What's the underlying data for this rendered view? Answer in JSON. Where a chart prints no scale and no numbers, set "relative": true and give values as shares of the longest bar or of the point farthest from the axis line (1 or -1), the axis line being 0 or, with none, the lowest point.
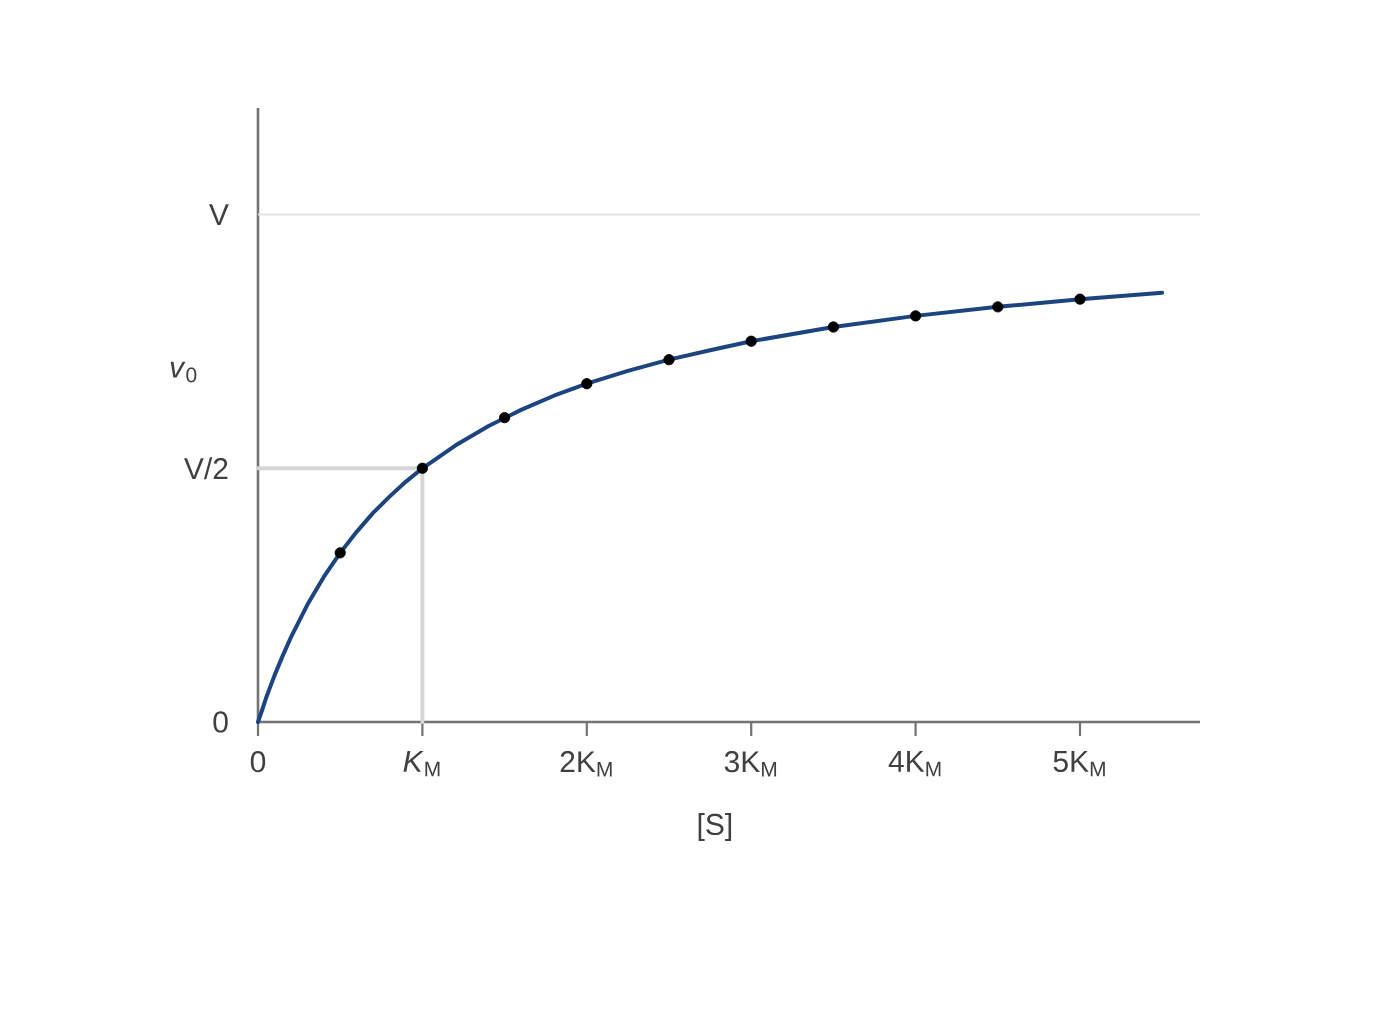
{
  "chart_data": {
    "type": "line",
    "relative": true,
    "xlabel": "[S]",
    "ylabel": "*v*$_{0}$",
    "xlim": [
      0,
      5.73
    ],
    "xticks": [
      0,
      {
        "value": 1,
        "label": "*K*$_{M}$"
      },
      {
        "value": 2,
        "label": "2K$_{M}$"
      },
      {
        "value": 3,
        "label": "3K$_{M}$"
      },
      {
        "value": 4,
        "label": "4K$_{M}$"
      },
      {
        "value": 5,
        "label": "5K$_{M}$"
      }
    ],
    "ref_lines": [
      {
        "axis": "y",
        "value": 1.182,
        "label": "V",
        "color": "#e4e4e4"
      }
    ],
    "annotations": [
      {
        "text": "V/2",
        "x": 0,
        "y": 0.591
      },
      {
        "text": "0",
        "x": 0,
        "y": 0
      }
    ],
    "series": [
      {
        "color": "#d6d6d6",
        "x": [
          0,
          1,
          1
        ],
        "values": [
          0.591,
          0.591,
          0
        ]
      },
      {
        "color": "#1b4480",
        "x": [
          0,
          0.025,
          0.05,
          0.1,
          0.15,
          0.2,
          0.3,
          0.4,
          0.5,
          0.6,
          0.7,
          0.8,
          0.9,
          1.0,
          1.2,
          1.4,
          1.6,
          1.8,
          2.0,
          2.25,
          2.5,
          2.75,
          3,
          3.5,
          4,
          4.5,
          5,
          5.5
        ],
        "values": [
          0,
          0.028,
          0.057,
          0.108,
          0.154,
          0.197,
          0.273,
          0.338,
          0.394,
          0.443,
          0.487,
          0.525,
          0.56,
          0.591,
          0.644,
          0.689,
          0.727,
          0.76,
          0.788,
          0.818,
          0.844,
          0.866,
          0.887,
          0.92,
          0.946,
          0.967,
          0.985,
          1
        ]
      },
      {
        "type": "scatter",
        "color": "#000000",
        "marker": "circle",
        "x": [
          0.5,
          1,
          1.5,
          2,
          2.5,
          3,
          3.5,
          4,
          4.5,
          5
        ],
        "values": [
          0.394,
          0.591,
          0.709,
          0.788,
          0.844,
          0.887,
          0.92,
          0.946,
          0.967,
          0.985
        ]
      }
    ]
  }
}
